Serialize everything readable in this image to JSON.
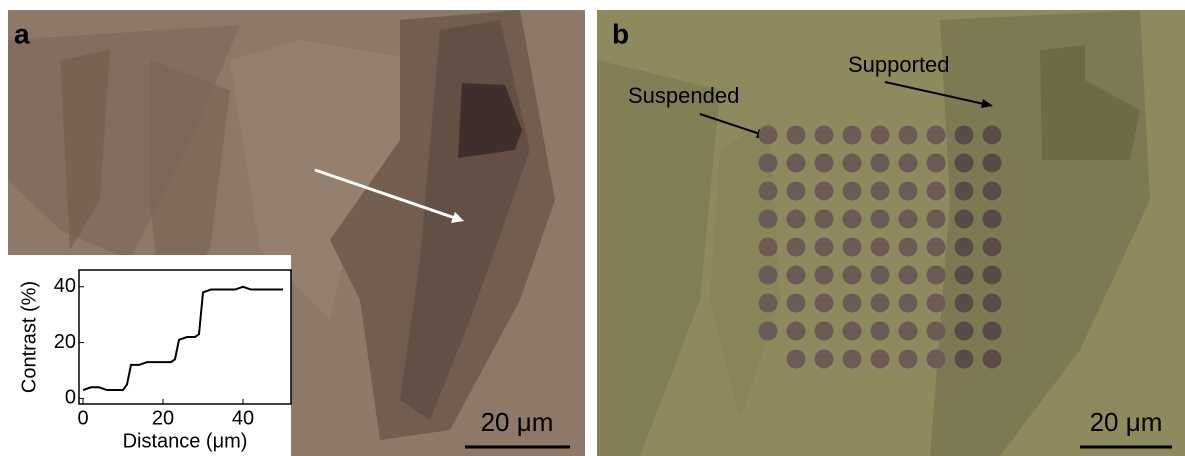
{
  "panels": [
    {
      "label": "a",
      "scale_bar": "20 μm"
    },
    {
      "label": "b",
      "scale_bar": "20 μm",
      "annotations": [
        "Suspended",
        "Supported"
      ]
    }
  ],
  "chart_data": {
    "type": "line",
    "xlabel": "Distance (μm)",
    "ylabel": "Contrast (%)",
    "x": [
      0,
      2,
      4,
      6,
      8,
      10,
      11,
      12,
      14,
      16,
      18,
      20,
      22,
      23,
      24,
      26,
      28,
      29,
      30,
      32,
      34,
      36,
      38,
      40,
      42,
      44,
      46,
      48,
      50
    ],
    "series": [
      {
        "color": "#000000",
        "values": [
          3,
          4,
          4,
          3,
          3,
          3,
          5,
          12,
          12,
          13,
          13,
          13,
          13,
          14,
          21,
          22,
          22,
          23,
          38,
          39,
          39,
          39,
          39,
          40,
          39,
          39,
          39,
          39,
          39
        ]
      }
    ],
    "xlim": [
      -1,
      52
    ],
    "ylim": [
      -2,
      46
    ],
    "xticks": [
      0,
      20,
      40
    ],
    "yticks": [
      0,
      20,
      40
    ]
  }
}
